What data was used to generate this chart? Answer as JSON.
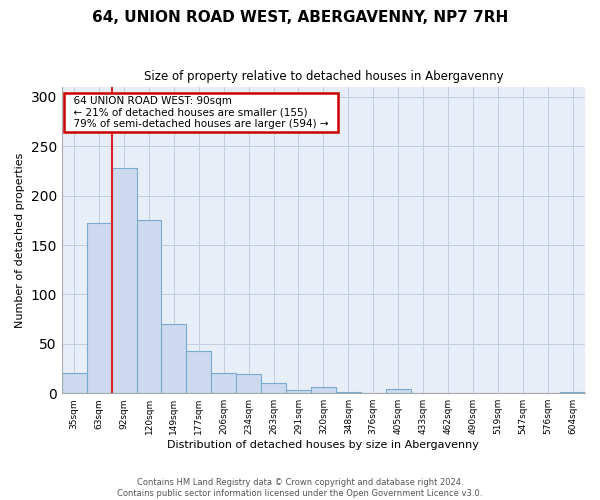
{
  "title": "64, UNION ROAD WEST, ABERGAVENNY, NP7 7RH",
  "subtitle": "Size of property relative to detached houses in Abergavenny",
  "xlabel": "Distribution of detached houses by size in Abergavenny",
  "ylabel": "Number of detached properties",
  "bar_labels": [
    "35sqm",
    "63sqm",
    "92sqm",
    "120sqm",
    "149sqm",
    "177sqm",
    "206sqm",
    "234sqm",
    "263sqm",
    "291sqm",
    "320sqm",
    "348sqm",
    "376sqm",
    "405sqm",
    "433sqm",
    "462sqm",
    "490sqm",
    "519sqm",
    "547sqm",
    "576sqm",
    "604sqm"
  ],
  "bar_values": [
    20,
    172,
    228,
    175,
    70,
    43,
    20,
    19,
    10,
    3,
    6,
    1,
    0,
    4,
    0,
    0,
    0,
    0,
    0,
    0,
    1
  ],
  "bar_color": "#ccd9ee",
  "bar_edge_color": "#7aaad0",
  "highlight_index": 2,
  "highlight_color": "#dd2222",
  "annotation_title": "64 UNION ROAD WEST: 90sqm",
  "annotation_line1": "← 21% of detached houses are smaller (155)",
  "annotation_line2": "79% of semi-detached houses are larger (594) →",
  "annotation_box_color": "#ffffff",
  "annotation_box_edge_color": "#cc0000",
  "plot_bg_color": "#e8eef8",
  "ylim": [
    0,
    310
  ],
  "yticks": [
    0,
    50,
    100,
    150,
    200,
    250,
    300
  ],
  "footer_line1": "Contains HM Land Registry data © Crown copyright and database right 2024.",
  "footer_line2": "Contains public sector information licensed under the Open Government Licence v3.0."
}
